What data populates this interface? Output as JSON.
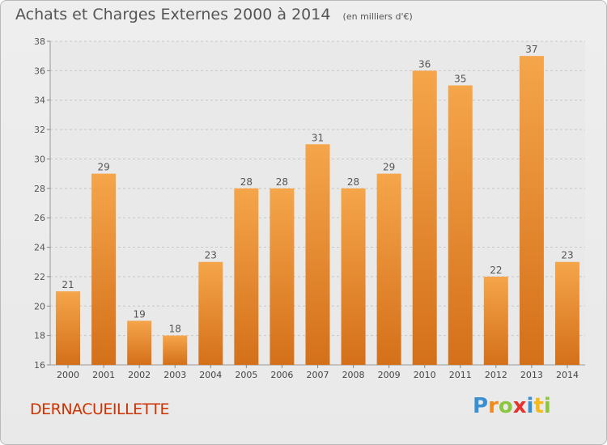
{
  "chart_data": {
    "type": "bar",
    "title": "Achats et Charges Externes 2000 à 2014",
    "unit_note": "(en milliers d'€)",
    "categories": [
      "2000",
      "2001",
      "2002",
      "2003",
      "2004",
      "2005",
      "2006",
      "2007",
      "2008",
      "2009",
      "2010",
      "2011",
      "2012",
      "2013",
      "2014"
    ],
    "values": [
      21,
      29,
      19,
      18,
      23,
      28,
      28,
      31,
      28,
      29,
      36,
      35,
      22,
      37,
      23
    ],
    "ylim": [
      16,
      38
    ],
    "yticks": [
      16,
      18,
      20,
      22,
      24,
      26,
      28,
      30,
      32,
      34,
      36,
      38
    ],
    "grid": "horizontal dashed",
    "bar_color_top": "#f5a54a",
    "bar_color_bottom": "#d4701a"
  },
  "commune": "DERNACUEILLETTE",
  "logo": {
    "letters": [
      "P",
      "r",
      "o",
      "x",
      "i",
      "t",
      "i"
    ],
    "colors": [
      "#3a8fd0",
      "#f08a1c",
      "#8cc63f",
      "#e8312a",
      "#3a8fd0",
      "#f5b91a",
      "#8cc63f"
    ]
  }
}
